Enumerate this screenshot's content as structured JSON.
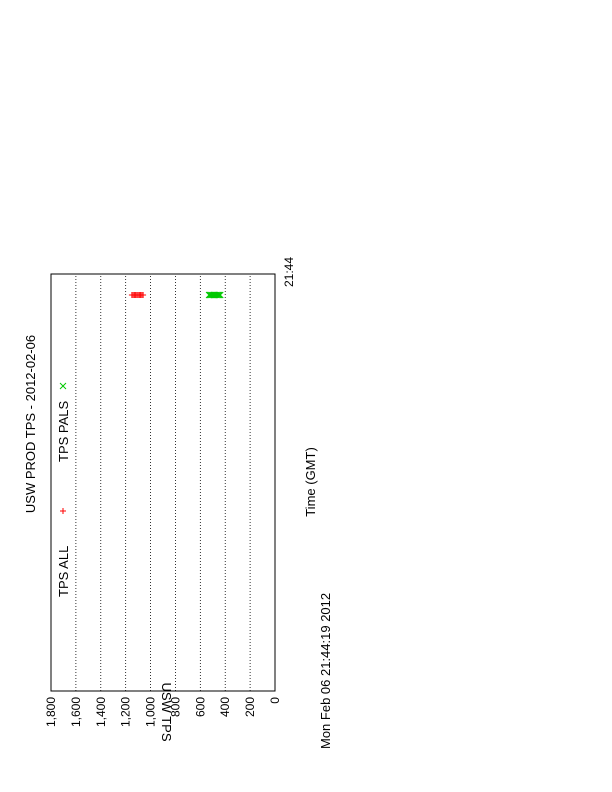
{
  "chart_data": {
    "type": "scatter",
    "title": "USW PROD TPS - 2012-02-06",
    "xlabel": "Time (GMT)",
    "ylabel": "USW TPS",
    "x_ticks": [
      "21:44"
    ],
    "y_ticks": [
      "0",
      "200",
      "400",
      "600",
      "800",
      "1,000",
      "1,200",
      "1,400",
      "1,600",
      "1,800"
    ],
    "ylim": [
      0,
      1800
    ],
    "grid": "horizontal dotted",
    "legend_position": "top-left",
    "timestamp": "Mon Feb 06 21:44:19 2012",
    "series": [
      {
        "name": "TPS ALL",
        "marker": "+",
        "color": "#ff0000",
        "x": [
          "21:44",
          "21:44",
          "21:44",
          "21:44",
          "21:44",
          "21:44",
          "21:44",
          "21:44",
          "21:44",
          "21:44"
        ],
        "values": [
          1060,
          1070,
          1080,
          1090,
          1100,
          1110,
          1120,
          1130,
          1140,
          1150
        ]
      },
      {
        "name": "TPS PALS",
        "marker": "x",
        "color": "#00c800",
        "x": [
          "21:44",
          "21:44",
          "21:44",
          "21:44",
          "21:44",
          "21:44",
          "21:44",
          "21:44",
          "21:44",
          "21:44"
        ],
        "values": [
          440,
          450,
          460,
          470,
          480,
          490,
          500,
          510,
          520,
          530
        ]
      }
    ]
  }
}
